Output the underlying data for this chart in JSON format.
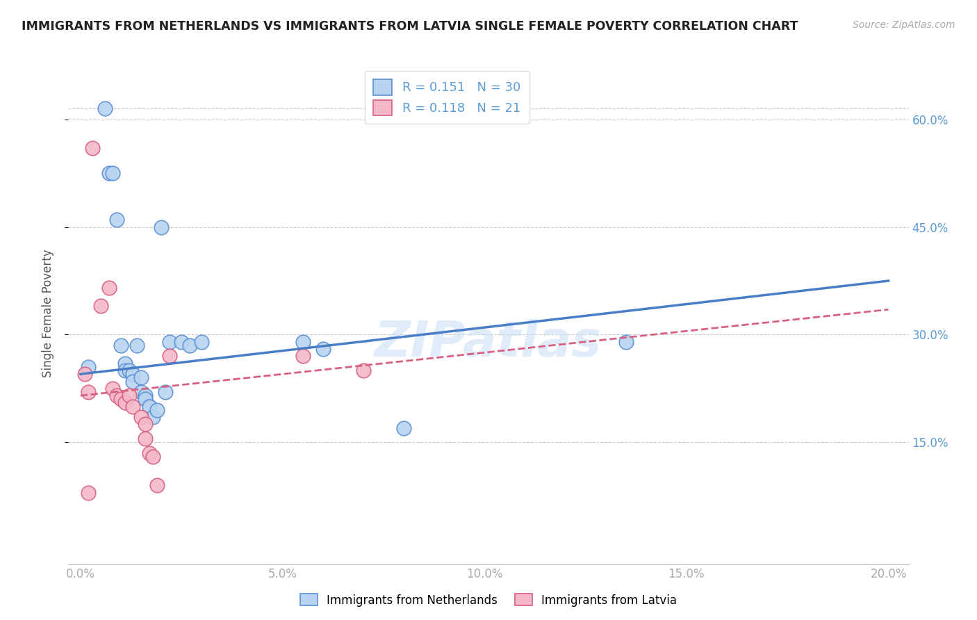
{
  "title": "IMMIGRANTS FROM NETHERLANDS VS IMMIGRANTS FROM LATVIA SINGLE FEMALE POVERTY CORRELATION CHART",
  "source": "Source: ZipAtlas.com",
  "ylabel": "Single Female Poverty",
  "x_tick_labels": [
    "0.0%",
    "5.0%",
    "10.0%",
    "15.0%",
    "20.0%"
  ],
  "x_tick_values": [
    0.0,
    0.05,
    0.1,
    0.15,
    0.2
  ],
  "y_tick_labels": [
    "15.0%",
    "30.0%",
    "45.0%",
    "60.0%"
  ],
  "y_tick_values": [
    0.15,
    0.3,
    0.45,
    0.6
  ],
  "xlim": [
    -0.003,
    0.205
  ],
  "ylim": [
    -0.02,
    0.68
  ],
  "legend_labels": [
    "Immigrants from Netherlands",
    "Immigrants from Latvia"
  ],
  "r_netherlands": "0.151",
  "n_netherlands": "30",
  "r_latvia": "0.118",
  "n_latvia": "21",
  "color_netherlands_fill": "#B8D4F0",
  "color_netherlands_edge": "#5A8FD4",
  "color_netherlands_line": "#4A7FC8",
  "color_latvia_fill": "#F4B8C8",
  "color_latvia_edge": "#D86080",
  "color_latvia_line": "#D86080",
  "watermark": "ZIPatlas",
  "title_color": "#222222",
  "axis_label_color": "#5B9BD5",
  "blue_scatter_x": [
    0.002,
    0.006,
    0.007,
    0.008,
    0.009,
    0.01,
    0.011,
    0.011,
    0.012,
    0.013,
    0.013,
    0.014,
    0.015,
    0.015,
    0.016,
    0.016,
    0.017,
    0.017,
    0.018,
    0.019,
    0.02,
    0.021,
    0.022,
    0.025,
    0.027,
    0.03,
    0.055,
    0.06,
    0.08,
    0.135
  ],
  "blue_scatter_y": [
    0.255,
    0.615,
    0.525,
    0.525,
    0.46,
    0.285,
    0.26,
    0.25,
    0.25,
    0.245,
    0.235,
    0.285,
    0.24,
    0.22,
    0.215,
    0.21,
    0.2,
    0.2,
    0.185,
    0.195,
    0.45,
    0.22,
    0.29,
    0.29,
    0.285,
    0.29,
    0.29,
    0.28,
    0.17,
    0.29
  ],
  "pink_scatter_x": [
    0.001,
    0.002,
    0.003,
    0.005,
    0.007,
    0.008,
    0.009,
    0.01,
    0.011,
    0.012,
    0.013,
    0.015,
    0.016,
    0.016,
    0.017,
    0.018,
    0.019,
    0.022,
    0.055,
    0.07,
    0.002
  ],
  "pink_scatter_y": [
    0.245,
    0.22,
    0.56,
    0.34,
    0.365,
    0.225,
    0.215,
    0.21,
    0.205,
    0.215,
    0.2,
    0.185,
    0.175,
    0.155,
    0.135,
    0.13,
    0.09,
    0.27,
    0.27,
    0.25,
    0.08
  ]
}
